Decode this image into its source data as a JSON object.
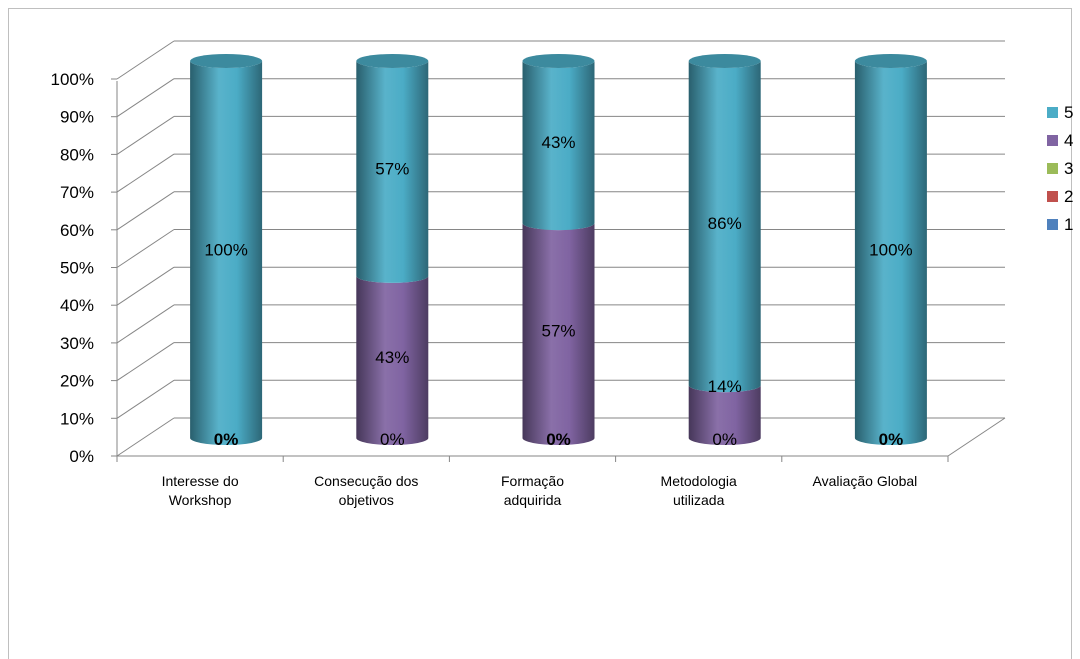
{
  "chart_data": {
    "type": "bar",
    "stacked": "percent",
    "style": "3d-cylinder",
    "categories": [
      [
        "Interesse do",
        "Workshop"
      ],
      [
        "Consecução dos",
        "objetivos"
      ],
      [
        "Formação",
        "adquirida"
      ],
      [
        "Metodologia",
        "utilizada"
      ],
      [
        "Avaliação Global"
      ]
    ],
    "series": [
      {
        "name": "1",
        "color": "#4f81bd",
        "values": [
          0,
          0,
          0,
          0,
          0
        ]
      },
      {
        "name": "2",
        "color": "#c0504d",
        "values": [
          0,
          0,
          0,
          0,
          0
        ]
      },
      {
        "name": "3",
        "color": "#9bbb59",
        "values": [
          0,
          0,
          0,
          0,
          0
        ]
      },
      {
        "name": "4",
        "color": "#8064a2",
        "values": [
          0,
          43,
          57,
          14,
          0
        ]
      },
      {
        "name": "5",
        "color": "#4bacc6",
        "values": [
          100,
          57,
          43,
          86,
          100
        ]
      }
    ],
    "data_labels": [
      [
        {
          "text": "0%",
          "bold": true,
          "series": "low"
        },
        {
          "text": "100%",
          "series": "5"
        }
      ],
      [
        {
          "text": "0%",
          "series": "low"
        },
        {
          "text": "43%",
          "series": "4"
        },
        {
          "text": "57%",
          "series": "5"
        }
      ],
      [
        {
          "text": "0%",
          "bold": true,
          "series": "low"
        },
        {
          "text": "57%",
          "series": "4"
        },
        {
          "text": "43%",
          "series": "5"
        }
      ],
      [
        {
          "text": "0%",
          "series": "low"
        },
        {
          "text": "14%",
          "series": "4"
        },
        {
          "text": "86%",
          "series": "5"
        }
      ],
      [
        {
          "text": "0%",
          "bold": true,
          "series": "low"
        },
        {
          "text": "100%",
          "series": "5"
        }
      ]
    ],
    "y_ticks": [
      "0%",
      "10%",
      "20%",
      "30%",
      "40%",
      "50%",
      "60%",
      "70%",
      "80%",
      "90%",
      "100%"
    ],
    "ylim": [
      0,
      100
    ],
    "grid": true,
    "legend_position": "right",
    "legend_order": [
      "5",
      "4",
      "3",
      "2",
      "1"
    ],
    "title": "",
    "xlabel": "",
    "ylabel": ""
  }
}
